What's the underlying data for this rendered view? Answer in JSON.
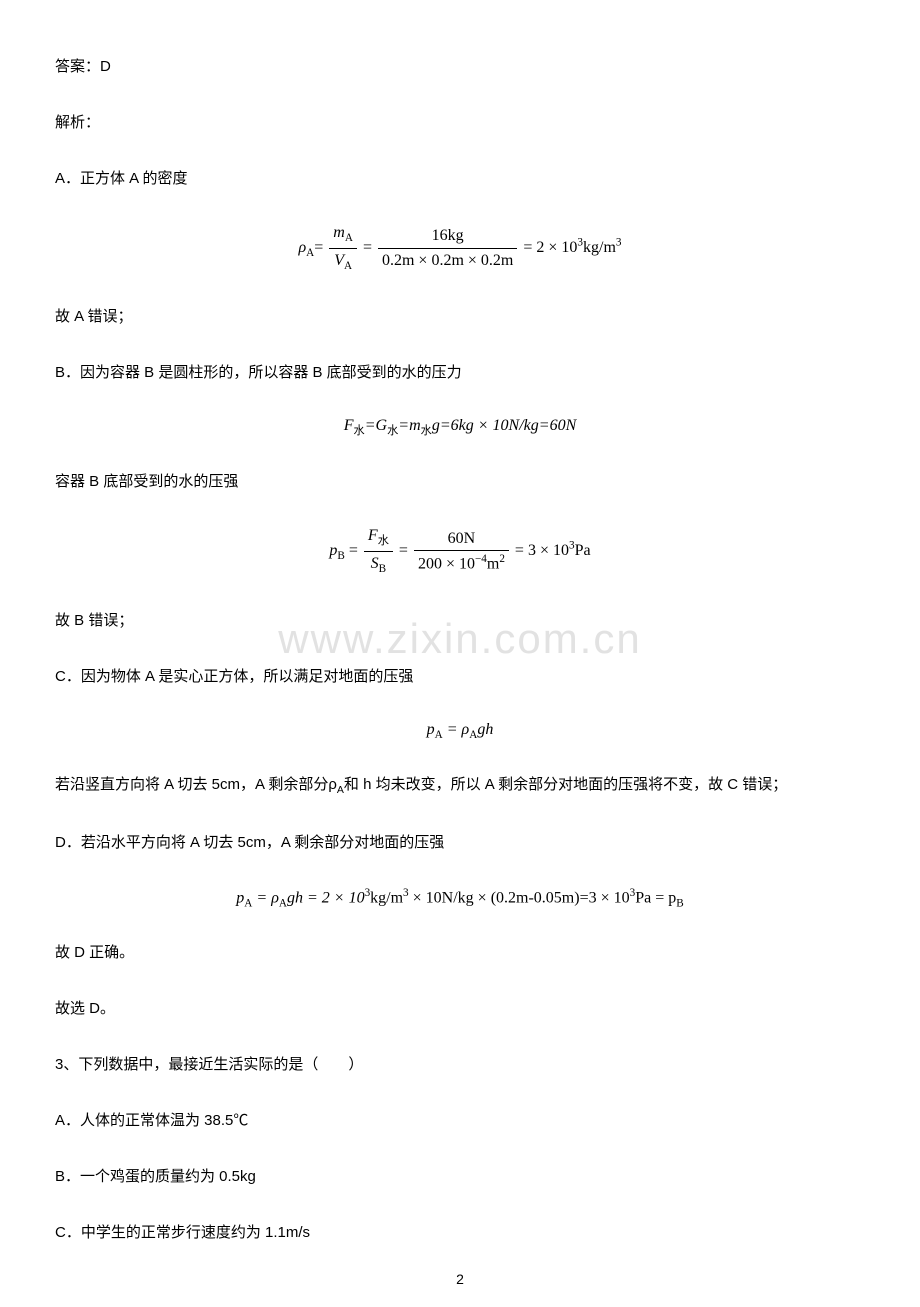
{
  "answer_label": "答案：D",
  "explain_label": "解析：",
  "optA_intro": "A．正方体 A 的密度",
  "formulaA": {
    "lhs": "ρ",
    "lhs_sub": "A",
    "eq": "=",
    "frac1_num": "m",
    "frac1_num_sub": "A",
    "frac1_den": "V",
    "frac1_den_sub": "A",
    "frac2_num": "16kg",
    "frac2_den": "0.2m × 0.2m × 0.2m",
    "result": "= 2 × 10",
    "result_sup": "3",
    "result_unit": "kg/m",
    "result_unit_sup": "3"
  },
  "optA_conclusion": "故 A 错误；",
  "optB_intro": "B．因为容器 B 是圆柱形的，所以容器 B 底部受到的水的压力",
  "formulaB1": "F",
  "formulaB1_sub1": "水",
  "formulaB1_mid": "=G",
  "formulaB1_sub2": "水",
  "formulaB1_mid2": "=m",
  "formulaB1_sub3": "水",
  "formulaB1_mid3": "g=6kg × 10N/kg=60N",
  "optB_mid": "容器 B 底部受到的水的压强",
  "formulaB2": {
    "lhs": "p",
    "lhs_sub": "B",
    "frac1_num": "F",
    "frac1_num_sub": "水",
    "frac1_den": "S",
    "frac1_den_sub": "B",
    "frac2_num": "60N",
    "frac2_den_a": "200 × 10",
    "frac2_den_sup": "−4",
    "frac2_den_b": "m",
    "frac2_den_sup2": "2",
    "result": "= 3 × 10",
    "result_sup": "3",
    "result_unit": "Pa"
  },
  "optB_conclusion": "故 B 错误；",
  "optC_intro": "C．因为物体 A 是实心正方体，所以满足对地面的压强",
  "formulaC": {
    "lhs": "p",
    "lhs_sub": "A",
    "rhs": " = ρ",
    "rhs_sub": "A",
    "rhs2": "gh"
  },
  "optC_body": "若沿竖直方向将 A 切去 5cm，A 剩余部分ρ",
  "optC_body_sub": "A",
  "optC_body2": "和 h 均未改变，所以 A 剩余部分对地面的压强将不变，故 C 错误；",
  "optD_intro": "D．若沿水平方向将 A 切去 5cm，A 剩余部分对地面的压强",
  "formulaD": {
    "lhs": "p",
    "lhs_sub": "A",
    "mid1": " = ρ",
    "mid1_sub": "A",
    "mid2": "gh = 2 × 10",
    "mid2_sup": "3",
    "mid3": "kg/m",
    "mid3_sup": "3",
    "mid4": " × 10N/kg × (0.2m-0.05m)=3 × 10",
    "mid4_sup": "3",
    "mid5": "Pa = p",
    "mid5_sub": "B"
  },
  "optD_conclusion": "故 D 正确。",
  "final": "故选 D。",
  "q3": "3、下列数据中，最接近生活实际的是（　　）",
  "q3A": "A．人体的正常体温为 38.5℃",
  "q3B": "B．一个鸡蛋的质量约为 0.5kg",
  "q3C": "C．中学生的正常步行速度约为 1.1m/s",
  "watermark": "www.zixin.com.cn",
  "page_number": "2"
}
